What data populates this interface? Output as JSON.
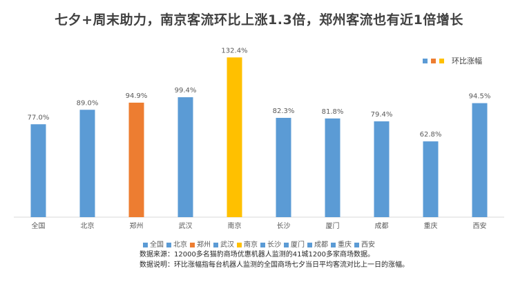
{
  "chart_data": {
    "type": "bar",
    "title": "七夕+周末助力，南京客流环比上涨1.3倍，郑州客流也有近1倍增长",
    "categories": [
      "全国",
      "北京",
      "郑州",
      "武汉",
      "南京",
      "长沙",
      "厦门",
      "成都",
      "重庆",
      "西安"
    ],
    "values": [
      77.0,
      89.0,
      94.9,
      99.4,
      132.4,
      82.3,
      81.8,
      79.4,
      62.8,
      94.5
    ],
    "value_labels": [
      "77.0%",
      "89.0%",
      "94.9%",
      "99.4%",
      "132.4%",
      "82.3%",
      "81.8%",
      "79.4%",
      "62.8%",
      "94.5%"
    ],
    "bar_colors": [
      "#5B9BD5",
      "#5B9BD5",
      "#ED7D31",
      "#5B9BD5",
      "#FFC000",
      "#5B9BD5",
      "#5B9BD5",
      "#5B9BD5",
      "#5B9BD5",
      "#5B9BD5"
    ],
    "series_name": "环比涨幅",
    "ylim": [
      0,
      140
    ],
    "unit": "%",
    "grid": false,
    "legend_position": "top-right"
  },
  "legend_top": {
    "label": "环比涨幅",
    "swatches": [
      "#5B9BD5",
      "#ED7D31",
      "#FFC000"
    ]
  },
  "notes": {
    "source": "数据来源：12000多名猫豹商场优惠机器人监测的41城1200多家商场数据。",
    "explanation": "数据说明：环比涨幅指每台机器人监测的全国商场七夕当日平均客流对比上一日的涨幅。"
  }
}
